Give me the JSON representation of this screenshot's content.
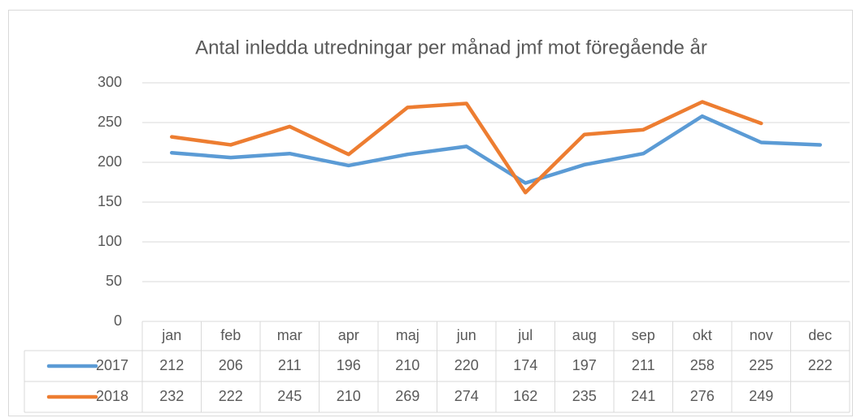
{
  "chart_data": {
    "type": "line",
    "title": "Antal inledda utredningar per månad jmf mot föregående år",
    "categories": [
      "jan",
      "feb",
      "mar",
      "apr",
      "maj",
      "jun",
      "jul",
      "aug",
      "sep",
      "okt",
      "nov",
      "dec"
    ],
    "series": [
      {
        "name": "2017",
        "color": "#5b9bd5",
        "values": [
          212,
          206,
          211,
          196,
          210,
          220,
          174,
          197,
          211,
          258,
          225,
          222
        ]
      },
      {
        "name": "2018",
        "color": "#ed7d31",
        "values": [
          232,
          222,
          245,
          210,
          269,
          274,
          162,
          235,
          241,
          276,
          249,
          null
        ]
      }
    ],
    "ylim": [
      0,
      300
    ],
    "yticks": [
      0,
      50,
      100,
      150,
      200,
      250,
      300
    ],
    "grid": true
  }
}
